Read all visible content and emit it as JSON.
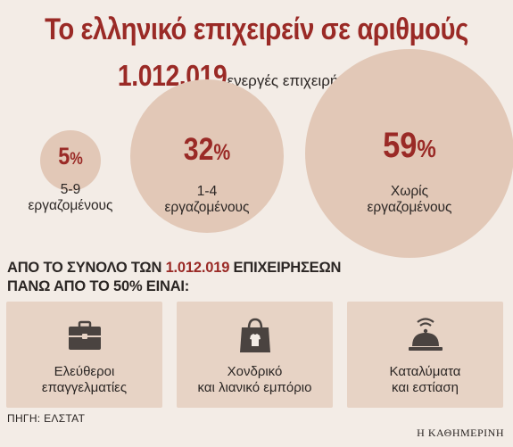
{
  "title": "Το ελληνικό επιχειρείν σε αριθμούς",
  "total": {
    "value": "1.012.019",
    "label": "ενεργές επιχειρήσεις (2020)"
  },
  "chart_data": {
    "type": "bubble",
    "title": "Το ελληνικό επιχειρείν σε αριθμούς",
    "unit": "%",
    "categories": [
      "5-9 εργαζομένους",
      "1-4 εργαζομένους",
      "Χωρίς εργαζομένους"
    ],
    "values": [
      5,
      32,
      59
    ],
    "value_labels": [
      "5",
      "32",
      "59"
    ],
    "label_lines": [
      [
        "5-9",
        "εργαζομένους"
      ],
      [
        "1-4",
        "εργαζομένους"
      ],
      [
        "Χωρίς",
        "εργαζομένους"
      ]
    ],
    "bubble_color": "#e2c8b7",
    "value_color": "#9a2a26"
  },
  "headline": {
    "line1_prefix": "ΑΠΟ ΤΟ ΣΥΝΟΛΟ ΤΩΝ ",
    "line1_highlight": "1.012.019",
    "line1_suffix": " ΕΠΙΧΕΙΡΗΣΕΩΝ",
    "line2": "ΠΑΝΩ ΑΠΟ ΤΟ 50% ΕΙΝΑΙ:"
  },
  "cards": [
    {
      "icon": "briefcase-icon",
      "line1": "Ελεύθεροι",
      "line2": "επαγγελματίες"
    },
    {
      "icon": "shopping-bag-icon",
      "line1": "Χονδρικό",
      "line2": "και λιανικό εμπόριο"
    },
    {
      "icon": "service-bell-icon",
      "line1": "Καταλύματα",
      "line2": "και εστίαση"
    }
  ],
  "source": "ΠΗΓΗ: ΕΛΣΤΑΤ",
  "brand": "Η ΚΑΘΗΜΕΡΙΝΗ"
}
